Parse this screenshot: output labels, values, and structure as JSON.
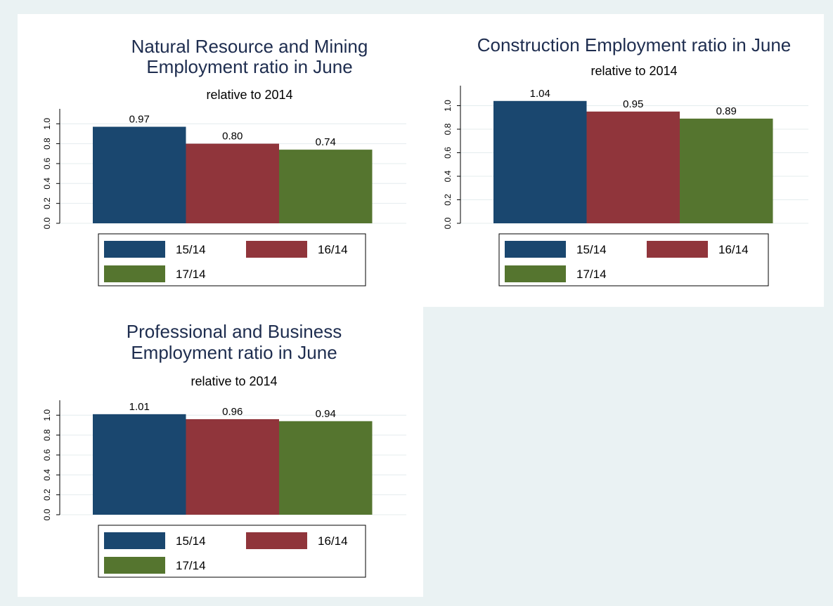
{
  "chart_data": [
    {
      "type": "bar",
      "title": [
        "Natural Resource and Mining",
        "Employment ratio in June"
      ],
      "subtitle": "relative to 2014",
      "series": [
        {
          "name": "15/14",
          "color": "#1a476f",
          "values": [
            0.97
          ],
          "value_labels": [
            "0.97"
          ]
        },
        {
          "name": "16/14",
          "color": "#90353b",
          "values": [
            0.8
          ],
          "value_labels": [
            "0.80"
          ]
        },
        {
          "name": "17/14",
          "color": "#55752f",
          "values": [
            0.74
          ],
          "value_labels": [
            "0.74"
          ]
        }
      ],
      "ylim": [
        0,
        1.15
      ],
      "yticks": [
        {
          "value": 0,
          "label": "0.0"
        },
        0.2,
        0.4,
        0.6,
        0.8,
        {
          "value": 1,
          "label": "1.0"
        }
      ],
      "grid": true
    },
    {
      "type": "bar",
      "title": [
        "Construction Employment ratio in June"
      ],
      "subtitle": "relative to 2014",
      "series": [
        {
          "name": "15/14",
          "color": "#1a476f",
          "values": [
            1.04
          ],
          "value_labels": [
            "1.04"
          ]
        },
        {
          "name": "16/14",
          "color": "#90353b",
          "values": [
            0.95
          ],
          "value_labels": [
            "0.95"
          ]
        },
        {
          "name": "17/14",
          "color": "#55752f",
          "values": [
            0.89
          ],
          "value_labels": [
            "0.89"
          ]
        }
      ],
      "ylim": [
        0,
        1.17
      ],
      "yticks": [
        {
          "value": 0,
          "label": "0.0"
        },
        0.2,
        0.4,
        0.6,
        0.8,
        {
          "value": 1,
          "label": "1.0"
        }
      ],
      "grid": true
    },
    {
      "type": "bar",
      "title": [
        "Professional and Business",
        "Employment ratio in June"
      ],
      "subtitle": "relative to 2014",
      "series": [
        {
          "name": "15/14",
          "color": "#1a476f",
          "values": [
            1.01
          ],
          "value_labels": [
            "1.01"
          ]
        },
        {
          "name": "16/14",
          "color": "#90353b",
          "values": [
            0.96
          ],
          "value_labels": [
            "0.96"
          ]
        },
        {
          "name": "17/14",
          "color": "#55752f",
          "values": [
            0.94
          ],
          "value_labels": [
            "0.94"
          ]
        }
      ],
      "ylim": [
        0,
        1.15
      ],
      "yticks": [
        {
          "value": 0,
          "label": "0.0"
        },
        0.2,
        0.4,
        0.6,
        0.8,
        {
          "value": 1,
          "label": "1.0"
        }
      ],
      "grid": true
    }
  ]
}
